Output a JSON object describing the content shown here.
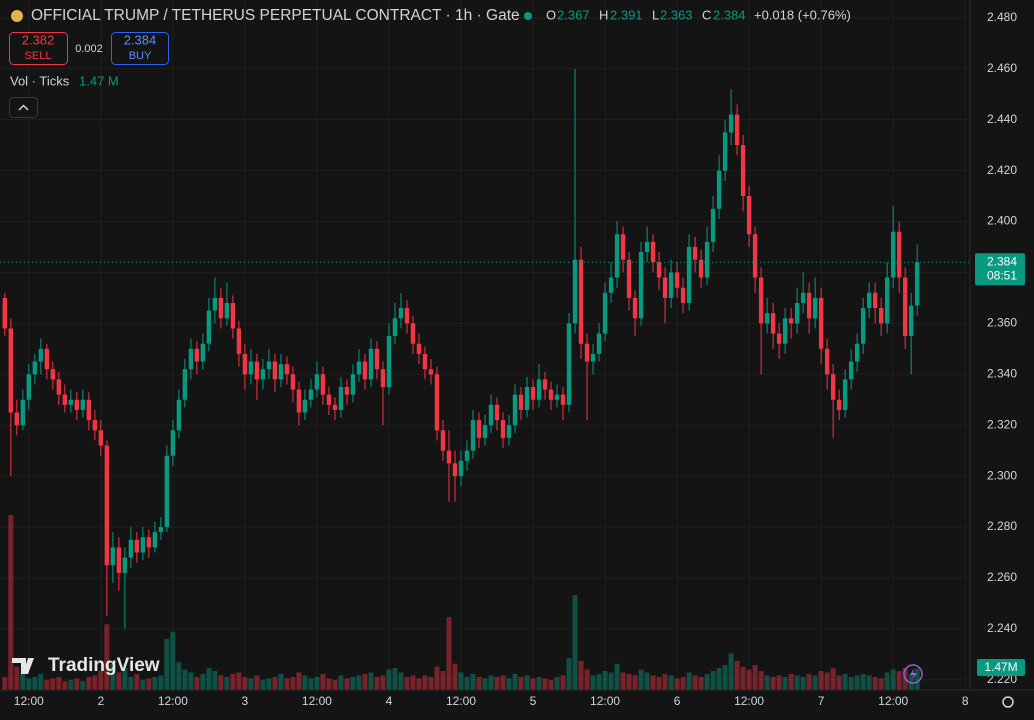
{
  "chart_data": {
    "type": "candlestick",
    "title": "OFFICIAL TRUMP / TETHERUS PERPETUAL CONTRACT · 1h · Gate",
    "ohlc_labels": [
      "O",
      "H",
      "L",
      "C"
    ],
    "change": "+0.018 (+0.76%)",
    "sell": {
      "price": 2.382,
      "label": "SELL"
    },
    "spread": 0.002,
    "buy": {
      "price": 2.384,
      "label": "BUY"
    },
    "countdown": "08:51",
    "watermark": "TradingView",
    "up_color": "#089981",
    "down_color": "#f23645",
    "grid": true,
    "xlim": [
      -0.8,
      160.8
    ],
    "ylim": [
      2.216,
      2.487
    ],
    "xticks": [
      {
        "value": 4,
        "label": "12:00"
      },
      {
        "value": 16,
        "label": "2"
      },
      {
        "value": 28,
        "label": "12:00"
      },
      {
        "value": 40,
        "label": "3"
      },
      {
        "value": 52,
        "label": "12:00"
      },
      {
        "value": 64,
        "label": "4"
      },
      {
        "value": 76,
        "label": "12:00"
      },
      {
        "value": 88,
        "label": "5"
      },
      {
        "value": 100,
        "label": "12:00"
      },
      {
        "value": 112,
        "label": "6"
      },
      {
        "value": 124,
        "label": "12:00"
      },
      {
        "value": 136,
        "label": "7"
      },
      {
        "value": 148,
        "label": "12:00"
      },
      {
        "value": 160,
        "label": "8"
      }
    ],
    "yticks": [
      {
        "value": 2.22,
        "label": "2.220"
      },
      {
        "value": 2.24,
        "label": "2.240"
      },
      {
        "value": 2.26,
        "label": "2.260"
      },
      {
        "value": 2.28,
        "label": "2.280"
      },
      {
        "value": 2.3,
        "label": "2.300"
      },
      {
        "value": 2.32,
        "label": "2.320"
      },
      {
        "value": 2.34,
        "label": "2.340"
      },
      {
        "value": 2.36,
        "label": "2.360"
      },
      {
        "value": 2.38,
        "label": "2.380"
      },
      {
        "value": 2.4,
        "label": "2.400"
      },
      {
        "value": 2.42,
        "label": "2.420"
      },
      {
        "value": 2.44,
        "label": "2.440"
      },
      {
        "value": 2.46,
        "label": "2.460"
      },
      {
        "value": 2.48,
        "label": "2.480"
      }
    ],
    "candles": [
      [
        2.37,
        2.372,
        2.355,
        2.358
      ],
      [
        2.358,
        2.362,
        2.3,
        2.325
      ],
      [
        2.325,
        2.33,
        2.316,
        2.32
      ],
      [
        2.32,
        2.334,
        2.318,
        2.33
      ],
      [
        2.33,
        2.344,
        2.326,
        2.34
      ],
      [
        2.34,
        2.348,
        2.336,
        2.345
      ],
      [
        2.345,
        2.354,
        2.34,
        2.35
      ],
      [
        2.35,
        2.352,
        2.338,
        2.342
      ],
      [
        2.342,
        2.345,
        2.334,
        2.338
      ],
      [
        2.338,
        2.341,
        2.328,
        2.332
      ],
      [
        2.332,
        2.336,
        2.325,
        2.328
      ],
      [
        2.328,
        2.334,
        2.325,
        2.33
      ],
      [
        2.33,
        2.333,
        2.322,
        2.326
      ],
      [
        2.326,
        2.334,
        2.323,
        2.33
      ],
      [
        2.33,
        2.333,
        2.318,
        2.322
      ],
      [
        2.322,
        2.326,
        2.314,
        2.318
      ],
      [
        2.318,
        2.322,
        2.308,
        2.312
      ],
      [
        2.312,
        2.314,
        2.245,
        2.265
      ],
      [
        2.265,
        2.278,
        2.258,
        2.272
      ],
      [
        2.272,
        2.276,
        2.255,
        2.262
      ],
      [
        2.262,
        2.272,
        2.24,
        2.268
      ],
      [
        2.268,
        2.28,
        2.264,
        2.275
      ],
      [
        2.275,
        2.278,
        2.266,
        2.27
      ],
      [
        2.27,
        2.28,
        2.267,
        2.276
      ],
      [
        2.276,
        2.279,
        2.268,
        2.272
      ],
      [
        2.272,
        2.282,
        2.27,
        2.278
      ],
      [
        2.278,
        2.284,
        2.275,
        2.28
      ],
      [
        2.28,
        2.312,
        2.278,
        2.308
      ],
      [
        2.308,
        2.322,
        2.304,
        2.318
      ],
      [
        2.318,
        2.334,
        2.315,
        2.33
      ],
      [
        2.33,
        2.346,
        2.327,
        2.342
      ],
      [
        2.342,
        2.354,
        2.338,
        2.35
      ],
      [
        2.35,
        2.353,
        2.34,
        2.345
      ],
      [
        2.345,
        2.356,
        2.342,
        2.352
      ],
      [
        2.352,
        2.37,
        2.349,
        2.365
      ],
      [
        2.365,
        2.378,
        2.36,
        2.37
      ],
      [
        2.37,
        2.374,
        2.358,
        2.362
      ],
      [
        2.362,
        2.376,
        2.359,
        2.368
      ],
      [
        2.368,
        2.371,
        2.354,
        2.358
      ],
      [
        2.358,
        2.361,
        2.343,
        2.348
      ],
      [
        2.348,
        2.352,
        2.334,
        2.34
      ],
      [
        2.34,
        2.35,
        2.336,
        2.345
      ],
      [
        2.345,
        2.348,
        2.33,
        2.338
      ],
      [
        2.338,
        2.346,
        2.334,
        2.342
      ],
      [
        2.342,
        2.35,
        2.338,
        2.345
      ],
      [
        2.345,
        2.348,
        2.333,
        2.338
      ],
      [
        2.338,
        2.348,
        2.335,
        2.344
      ],
      [
        2.344,
        2.347,
        2.336,
        2.34
      ],
      [
        2.34,
        2.343,
        2.329,
        2.334
      ],
      [
        2.334,
        2.337,
        2.32,
        2.325
      ],
      [
        2.325,
        2.334,
        2.322,
        2.33
      ],
      [
        2.33,
        2.338,
        2.327,
        2.334
      ],
      [
        2.334,
        2.345,
        2.331,
        2.34
      ],
      [
        2.34,
        2.343,
        2.328,
        2.332
      ],
      [
        2.332,
        2.335,
        2.324,
        2.328
      ],
      [
        2.328,
        2.331,
        2.322,
        2.326
      ],
      [
        2.326,
        2.339,
        2.323,
        2.335
      ],
      [
        2.335,
        2.338,
        2.328,
        2.332
      ],
      [
        2.332,
        2.344,
        2.329,
        2.34
      ],
      [
        2.34,
        2.35,
        2.337,
        2.345
      ],
      [
        2.345,
        2.348,
        2.334,
        2.338
      ],
      [
        2.338,
        2.354,
        2.335,
        2.35
      ],
      [
        2.35,
        2.353,
        2.338,
        2.342
      ],
      [
        2.342,
        2.345,
        2.32,
        2.335
      ],
      [
        2.335,
        2.36,
        2.332,
        2.355
      ],
      [
        2.355,
        2.368,
        2.352,
        2.362
      ],
      [
        2.362,
        2.372,
        2.358,
        2.366
      ],
      [
        2.366,
        2.369,
        2.356,
        2.36
      ],
      [
        2.36,
        2.363,
        2.348,
        2.352
      ],
      [
        2.352,
        2.356,
        2.344,
        2.348
      ],
      [
        2.348,
        2.351,
        2.338,
        2.342
      ],
      [
        2.342,
        2.346,
        2.336,
        2.34
      ],
      [
        2.34,
        2.343,
        2.314,
        2.318
      ],
      [
        2.318,
        2.322,
        2.306,
        2.31
      ],
      [
        2.31,
        2.318,
        2.29,
        2.305
      ],
      [
        2.305,
        2.31,
        2.29,
        2.3
      ],
      [
        2.3,
        2.31,
        2.296,
        2.306
      ],
      [
        2.306,
        2.314,
        2.302,
        2.31
      ],
      [
        2.31,
        2.326,
        2.307,
        2.322
      ],
      [
        2.322,
        2.325,
        2.311,
        2.315
      ],
      [
        2.315,
        2.324,
        2.312,
        2.32
      ],
      [
        2.32,
        2.332,
        2.317,
        2.328
      ],
      [
        2.328,
        2.331,
        2.318,
        2.322
      ],
      [
        2.322,
        2.325,
        2.311,
        2.315
      ],
      [
        2.315,
        2.324,
        2.312,
        2.32
      ],
      [
        2.32,
        2.336,
        2.317,
        2.332
      ],
      [
        2.332,
        2.335,
        2.322,
        2.326
      ],
      [
        2.326,
        2.339,
        2.323,
        2.335
      ],
      [
        2.335,
        2.338,
        2.326,
        2.33
      ],
      [
        2.33,
        2.344,
        2.327,
        2.338
      ],
      [
        2.338,
        2.341,
        2.33,
        2.334
      ],
      [
        2.334,
        2.337,
        2.326,
        2.33
      ],
      [
        2.33,
        2.336,
        2.327,
        2.332
      ],
      [
        2.332,
        2.335,
        2.322,
        2.328
      ],
      [
        2.328,
        2.364,
        2.325,
        2.36
      ],
      [
        2.36,
        2.46,
        2.356,
        2.385
      ],
      [
        2.385,
        2.39,
        2.346,
        2.352
      ],
      [
        2.352,
        2.356,
        2.322,
        2.345
      ],
      [
        2.345,
        2.352,
        2.34,
        2.348
      ],
      [
        2.348,
        2.36,
        2.345,
        2.356
      ],
      [
        2.356,
        2.376,
        2.353,
        2.372
      ],
      [
        2.372,
        2.384,
        2.368,
        2.378
      ],
      [
        2.378,
        2.4,
        2.374,
        2.395
      ],
      [
        2.395,
        2.398,
        2.38,
        2.385
      ],
      [
        2.385,
        2.388,
        2.365,
        2.37
      ],
      [
        2.37,
        2.373,
        2.355,
        2.362
      ],
      [
        2.362,
        2.392,
        2.359,
        2.388
      ],
      [
        2.388,
        2.398,
        2.384,
        2.392
      ],
      [
        2.392,
        2.395,
        2.38,
        2.384
      ],
      [
        2.384,
        2.388,
        2.373,
        2.378
      ],
      [
        2.378,
        2.382,
        2.36,
        2.37
      ],
      [
        2.37,
        2.385,
        2.366,
        2.38
      ],
      [
        2.38,
        2.384,
        2.37,
        2.374
      ],
      [
        2.374,
        2.378,
        2.364,
        2.368
      ],
      [
        2.368,
        2.395,
        2.365,
        2.39
      ],
      [
        2.39,
        2.394,
        2.38,
        2.385
      ],
      [
        2.385,
        2.389,
        2.374,
        2.378
      ],
      [
        2.378,
        2.398,
        2.375,
        2.392
      ],
      [
        2.392,
        2.41,
        2.388,
        2.405
      ],
      [
        2.405,
        2.426,
        2.401,
        2.42
      ],
      [
        2.42,
        2.44,
        2.416,
        2.435
      ],
      [
        2.435,
        2.452,
        2.43,
        2.442
      ],
      [
        2.442,
        2.446,
        2.426,
        2.43
      ],
      [
        2.43,
        2.434,
        2.404,
        2.41
      ],
      [
        2.41,
        2.414,
        2.39,
        2.395
      ],
      [
        2.395,
        2.398,
        2.372,
        2.378
      ],
      [
        2.378,
        2.382,
        2.34,
        2.36
      ],
      [
        2.36,
        2.37,
        2.356,
        2.364
      ],
      [
        2.364,
        2.368,
        2.35,
        2.356
      ],
      [
        2.356,
        2.36,
        2.346,
        2.352
      ],
      [
        2.352,
        2.366,
        2.348,
        2.362
      ],
      [
        2.362,
        2.366,
        2.354,
        2.36
      ],
      [
        2.36,
        2.374,
        2.356,
        2.368
      ],
      [
        2.368,
        2.38,
        2.364,
        2.372
      ],
      [
        2.372,
        2.376,
        2.356,
        2.362
      ],
      [
        2.362,
        2.378,
        2.358,
        2.37
      ],
      [
        2.37,
        2.374,
        2.344,
        2.35
      ],
      [
        2.35,
        2.354,
        2.334,
        2.34
      ],
      [
        2.34,
        2.344,
        2.315,
        2.33
      ],
      [
        2.33,
        2.334,
        2.322,
        2.326
      ],
      [
        2.326,
        2.342,
        2.323,
        2.338
      ],
      [
        2.338,
        2.35,
        2.334,
        2.345
      ],
      [
        2.345,
        2.356,
        2.341,
        2.352
      ],
      [
        2.352,
        2.37,
        2.348,
        2.366
      ],
      [
        2.366,
        2.376,
        2.362,
        2.372
      ],
      [
        2.372,
        2.376,
        2.36,
        2.366
      ],
      [
        2.366,
        2.37,
        2.355,
        2.36
      ],
      [
        2.36,
        2.384,
        2.356,
        2.378
      ],
      [
        2.378,
        2.406,
        2.374,
        2.396
      ],
      [
        2.396,
        2.4,
        2.372,
        2.378
      ],
      [
        2.378,
        2.382,
        2.35,
        2.355
      ],
      [
        2.355,
        2.372,
        2.34,
        2.367
      ],
      [
        2.367,
        2.391,
        2.363,
        2.384
      ]
    ],
    "volume": {
      "title": "Vol · Ticks",
      "label": "1.47 M",
      "axis_label": "1.47M",
      "values": [
        0.9,
        12,
        1.6,
        1.2,
        0.8,
        0.9,
        1.1,
        0.7,
        0.8,
        0.9,
        0.6,
        0.7,
        0.8,
        0.6,
        0.9,
        1.0,
        1.3,
        4.5,
        1.8,
        1.2,
        1.5,
        0.9,
        1.1,
        0.7,
        0.8,
        0.9,
        1.0,
        3.5,
        4.0,
        1.9,
        1.4,
        1.2,
        0.9,
        1.1,
        1.5,
        1.3,
        1.0,
        0.9,
        1.1,
        1.2,
        0.9,
        0.8,
        1.0,
        0.7,
        0.8,
        0.9,
        1.1,
        0.8,
        0.9,
        1.2,
        1.0,
        0.8,
        0.9,
        1.1,
        0.8,
        0.7,
        1.0,
        0.8,
        0.9,
        1.0,
        1.1,
        1.2,
        0.9,
        1.0,
        1.4,
        1.5,
        1.2,
        0.9,
        1.0,
        0.8,
        1.0,
        0.9,
        1.6,
        1.3,
        5.0,
        1.8,
        1.2,
        0.9,
        1.1,
        0.9,
        0.8,
        1.0,
        0.9,
        1.0,
        0.8,
        1.1,
        0.9,
        1.0,
        0.8,
        0.9,
        0.8,
        0.7,
        0.9,
        1.0,
        2.2,
        6.5,
        2.0,
        1.4,
        1.0,
        1.1,
        1.3,
        1.2,
        1.8,
        1.2,
        1.1,
        1.0,
        1.4,
        1.2,
        1.0,
        0.9,
        1.1,
        1.0,
        0.8,
        0.9,
        1.2,
        1.0,
        0.9,
        1.1,
        1.3,
        1.5,
        1.7,
        2.5,
        2.0,
        1.6,
        1.4,
        1.7,
        1.3,
        1.0,
        0.9,
        1.0,
        0.9,
        1.1,
        1.0,
        0.9,
        1.1,
        1.0,
        1.3,
        1.2,
        1.5,
        1.0,
        1.1,
        0.9,
        1.0,
        1.1,
        1.0,
        0.9,
        0.8,
        1.2,
        1.4,
        1.3,
        1.5,
        1.1,
        1.47
      ]
    }
  }
}
